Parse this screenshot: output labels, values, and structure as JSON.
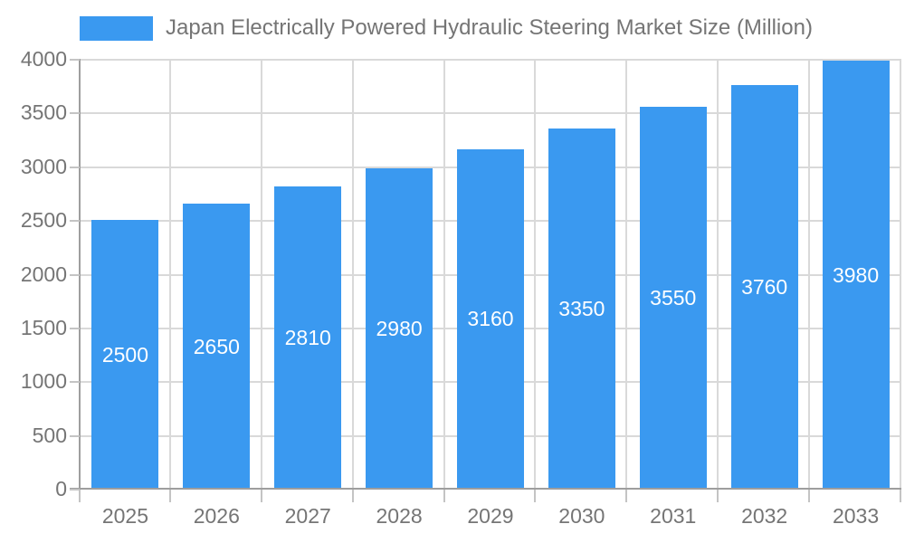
{
  "chart_data": {
    "type": "bar",
    "title": "Japan Electrically Powered Hydraulic Steering Market Size (Million)",
    "categories": [
      "2025",
      "2026",
      "2027",
      "2028",
      "2029",
      "2030",
      "2031",
      "2032",
      "2033"
    ],
    "values": [
      2500,
      2650,
      2810,
      2980,
      3160,
      3350,
      3550,
      3760,
      3980
    ],
    "value_labels": [
      "2500",
      "2650",
      "2810",
      "2980",
      "3160",
      "3350",
      "3550",
      "3760",
      "3980"
    ],
    "xlabel": "",
    "ylabel": "",
    "ylim": [
      0,
      4000
    ],
    "ytick_step": 500,
    "ytick_labels": [
      "0",
      "500",
      "1000",
      "1500",
      "2000",
      "2500",
      "3000",
      "3500",
      "4000"
    ],
    "grid": "both",
    "legend_position": "top-left",
    "colors": {
      "bar": "#3a99f0",
      "grid": "#d9d9d9",
      "axis": "#9e9e9e",
      "tick": "#c4c4c4",
      "axis_text": "#757575",
      "value_text": "#ffffff",
      "background": "#ffffff"
    }
  }
}
